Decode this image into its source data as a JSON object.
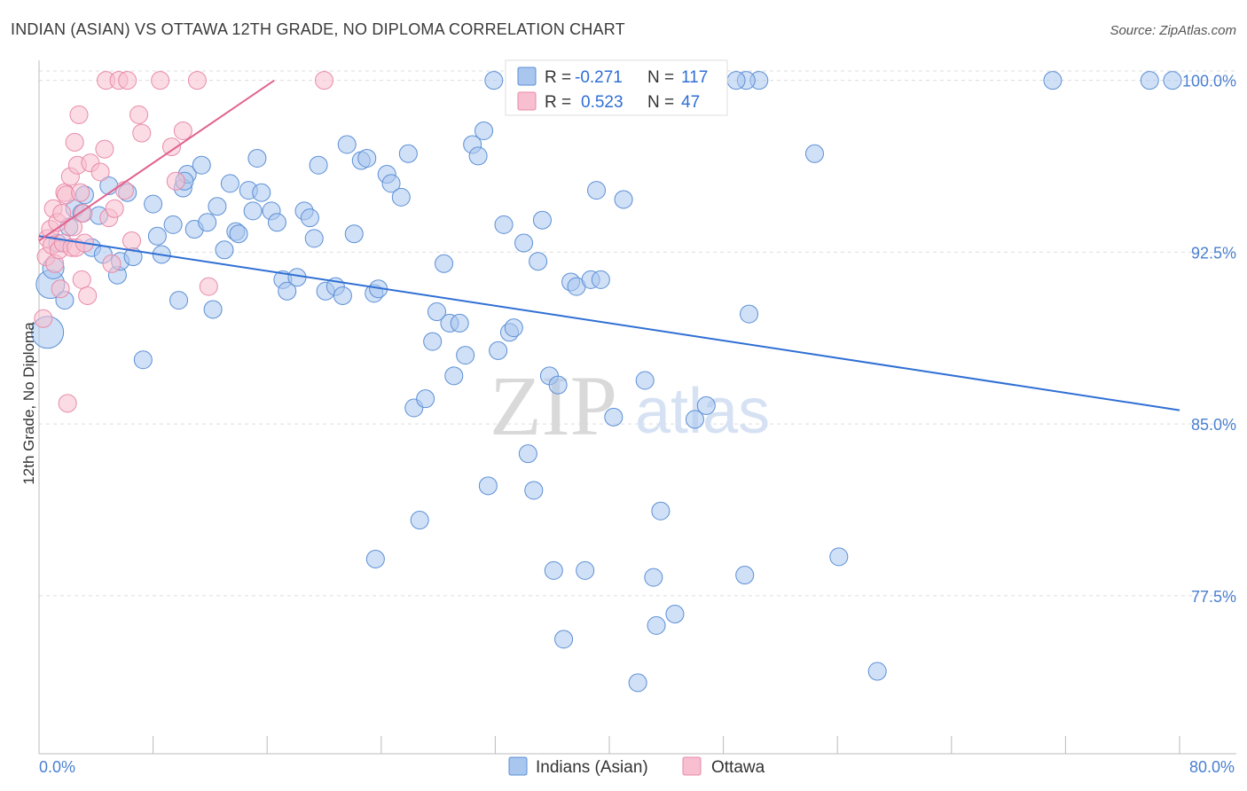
{
  "header": {
    "title": "INDIAN (ASIAN) VS OTTAWA 12TH GRADE, NO DIPLOMA CORRELATION CHART",
    "source": "Source: ZipAtlas.com"
  },
  "watermark": {
    "zip": "ZIP",
    "atlas": "atlas"
  },
  "colors": {
    "blue_fill": "#a9c6ee",
    "blue_stroke": "#5b8fd6",
    "blue_line": "#2f6fd4",
    "pink_fill": "#f7bfd0",
    "pink_stroke": "#e88aa8",
    "pink_line": "#e0638f",
    "grid": "#dddddd",
    "axis": "#bbbbbb"
  },
  "legend": {
    "rows": [
      {
        "r_label": "R =",
        "r_value": "-0.271",
        "n_label": "N =",
        "n_value": "117"
      },
      {
        "r_label": "R =",
        "r_value": "0.523",
        "n_label": "N =",
        "n_value": "47"
      }
    ]
  },
  "bottom_legend": {
    "series1": "Indians (Asian)",
    "series2": "Ottawa"
  },
  "chart_data": {
    "type": "scatter",
    "title": "INDIAN (ASIAN) VS OTTAWA 12TH GRADE, NO DIPLOMA CORRELATION CHART",
    "xlabel": "",
    "ylabel": "12th Grade, No Diploma",
    "xlim": [
      0,
      80
    ],
    "ylim": [
      70.6,
      100.8
    ],
    "x_tick_labels": [
      "0.0%",
      "80.0%"
    ],
    "y_ticks": [
      100.0,
      92.5,
      85.0,
      77.5
    ],
    "y_tick_labels": [
      "100.0%",
      "92.5%",
      "85.0%",
      "77.5%"
    ],
    "grid": true,
    "series": [
      {
        "name": "Indians (Asian)",
        "r": -0.271,
        "n": 117,
        "trend": {
          "x1": 0.0,
          "y1": 93.2,
          "x2": 80.0,
          "y2": 85.6
        },
        "points": [
          [
            0.6,
            89.0,
            18
          ],
          [
            0.8,
            91.1,
            16
          ],
          [
            1.0,
            91.8,
            12
          ],
          [
            1.3,
            92.9,
            10
          ],
          [
            1.8,
            90.4,
            10
          ],
          [
            2.1,
            93.6,
            10
          ],
          [
            2.5,
            94.4,
            10
          ],
          [
            3.0,
            94.2,
            10
          ],
          [
            3.2,
            95.0,
            10
          ],
          [
            3.7,
            92.7,
            10
          ],
          [
            4.2,
            94.1,
            10
          ],
          [
            4.5,
            92.4,
            10
          ],
          [
            4.9,
            95.4,
            10
          ],
          [
            5.5,
            91.5,
            10
          ],
          [
            5.7,
            92.1,
            10
          ],
          [
            6.2,
            95.1,
            10
          ],
          [
            6.6,
            92.3,
            10
          ],
          [
            7.3,
            87.8,
            10
          ],
          [
            8.0,
            94.6,
            10
          ],
          [
            8.3,
            93.2,
            10
          ],
          [
            8.6,
            92.4,
            10
          ],
          [
            9.4,
            93.7,
            10
          ],
          [
            9.8,
            90.4,
            10
          ],
          [
            10.1,
            95.3,
            10
          ],
          [
            10.4,
            95.9,
            10
          ],
          [
            10.9,
            93.5,
            10
          ],
          [
            11.4,
            96.3,
            10
          ],
          [
            11.8,
            93.8,
            10
          ],
          [
            12.2,
            90.0,
            10
          ],
          [
            12.5,
            94.5,
            10
          ],
          [
            13.0,
            92.6,
            10
          ],
          [
            13.4,
            95.5,
            10
          ],
          [
            13.8,
            93.4,
            10
          ],
          [
            14.0,
            93.3,
            10
          ],
          [
            14.7,
            95.2,
            10
          ],
          [
            15.0,
            94.3,
            10
          ],
          [
            15.3,
            96.6,
            10
          ],
          [
            15.6,
            95.1,
            10
          ],
          [
            16.3,
            94.3,
            10
          ],
          [
            16.7,
            93.8,
            10
          ],
          [
            17.1,
            91.3,
            10
          ],
          [
            17.4,
            90.8,
            10
          ],
          [
            18.1,
            91.4,
            10
          ],
          [
            18.6,
            94.3,
            10
          ],
          [
            19.0,
            94.0,
            10
          ],
          [
            19.3,
            93.1,
            10
          ],
          [
            19.6,
            96.3,
            10
          ],
          [
            20.1,
            90.8,
            10
          ],
          [
            20.8,
            91.0,
            10
          ],
          [
            21.3,
            90.6,
            10
          ],
          [
            21.6,
            97.2,
            10
          ],
          [
            22.1,
            93.3,
            10
          ],
          [
            22.6,
            96.5,
            10
          ],
          [
            23.0,
            96.6,
            10
          ],
          [
            23.5,
            90.7,
            10
          ],
          [
            23.8,
            90.9,
            10
          ],
          [
            24.4,
            95.9,
            10
          ],
          [
            24.7,
            95.5,
            10
          ],
          [
            25.4,
            94.9,
            10
          ],
          [
            25.9,
            96.8,
            10
          ],
          [
            26.3,
            85.7,
            10
          ],
          [
            26.7,
            80.8,
            10
          ],
          [
            27.1,
            86.1,
            10
          ],
          [
            27.6,
            88.6,
            10
          ],
          [
            27.9,
            89.9,
            10
          ],
          [
            28.4,
            92.0,
            10
          ],
          [
            28.8,
            89.4,
            10
          ],
          [
            29.1,
            87.1,
            10
          ],
          [
            29.5,
            89.4,
            10
          ],
          [
            29.9,
            88.0,
            10
          ],
          [
            30.4,
            97.2,
            10
          ],
          [
            30.8,
            96.7,
            10
          ],
          [
            31.2,
            97.8,
            10
          ],
          [
            31.5,
            82.3,
            10
          ],
          [
            31.9,
            100.0,
            10
          ],
          [
            32.2,
            88.2,
            10
          ],
          [
            32.6,
            93.7,
            10
          ],
          [
            33.0,
            89.0,
            10
          ],
          [
            33.3,
            89.2,
            10
          ],
          [
            34.0,
            92.9,
            10
          ],
          [
            34.3,
            83.7,
            10
          ],
          [
            34.7,
            82.1,
            10
          ],
          [
            35.0,
            92.1,
            10
          ],
          [
            35.3,
            93.9,
            10
          ],
          [
            35.8,
            87.1,
            10
          ],
          [
            36.1,
            78.6,
            10
          ],
          [
            36.4,
            86.7,
            10
          ],
          [
            36.8,
            75.6,
            10
          ],
          [
            37.3,
            91.2,
            10
          ],
          [
            37.7,
            91.0,
            10
          ],
          [
            38.3,
            78.6,
            10
          ],
          [
            38.7,
            91.3,
            10
          ],
          [
            39.1,
            95.2,
            10
          ],
          [
            39.4,
            91.3,
            10
          ],
          [
            40.3,
            85.3,
            10
          ],
          [
            41.0,
            94.8,
            10
          ],
          [
            42.0,
            73.7,
            10
          ],
          [
            42.5,
            86.9,
            10
          ],
          [
            43.1,
            78.3,
            10
          ],
          [
            43.3,
            76.2,
            10
          ],
          [
            43.6,
            81.2,
            10
          ],
          [
            44.6,
            76.7,
            10
          ],
          [
            46.0,
            85.2,
            10
          ],
          [
            46.8,
            85.8,
            10
          ],
          [
            49.5,
            78.4,
            10
          ],
          [
            49.8,
            89.8,
            10
          ],
          [
            50.5,
            100.0,
            10
          ],
          [
            54.4,
            96.8,
            10
          ],
          [
            56.1,
            79.2,
            10
          ],
          [
            58.8,
            74.2,
            10
          ],
          [
            71.1,
            100.0,
            10
          ],
          [
            77.9,
            100.0,
            10
          ],
          [
            79.5,
            100.0,
            10
          ],
          [
            49.6,
            100.0,
            10
          ],
          [
            48.9,
            100.0,
            10
          ],
          [
            23.6,
            79.1,
            10
          ],
          [
            10.2,
            95.6,
            10
          ]
        ]
      },
      {
        "name": "Ottawa",
        "r": 0.523,
        "n": 47,
        "trend": {
          "x1": 0.0,
          "y1": 93.0,
          "x2": 16.5,
          "y2": 100.0
        },
        "points": [
          [
            0.3,
            89.6,
            10
          ],
          [
            0.5,
            92.3,
            10
          ],
          [
            0.6,
            93.1,
            10
          ],
          [
            0.8,
            93.5,
            10
          ],
          [
            0.9,
            92.8,
            10
          ],
          [
            1.0,
            94.4,
            10
          ],
          [
            1.1,
            92.0,
            10
          ],
          [
            1.3,
            93.8,
            10
          ],
          [
            1.4,
            92.6,
            10
          ],
          [
            1.5,
            90.9,
            10
          ],
          [
            1.6,
            94.2,
            10
          ],
          [
            1.7,
            92.9,
            10
          ],
          [
            1.8,
            95.1,
            10
          ],
          [
            1.9,
            95.0,
            10
          ],
          [
            2.0,
            85.9,
            10
          ],
          [
            2.2,
            95.8,
            10
          ],
          [
            2.3,
            92.7,
            10
          ],
          [
            2.4,
            93.6,
            10
          ],
          [
            2.5,
            97.3,
            10
          ],
          [
            2.6,
            92.7,
            10
          ],
          [
            2.7,
            96.3,
            10
          ],
          [
            2.8,
            98.5,
            10
          ],
          [
            2.9,
            95.1,
            10
          ],
          [
            3.0,
            91.3,
            10
          ],
          [
            3.1,
            94.2,
            10
          ],
          [
            3.2,
            92.9,
            10
          ],
          [
            3.4,
            90.6,
            10
          ],
          [
            3.6,
            96.4,
            10
          ],
          [
            4.3,
            96.0,
            10
          ],
          [
            4.6,
            97.0,
            10
          ],
          [
            4.7,
            100.0,
            10
          ],
          [
            4.9,
            94.0,
            10
          ],
          [
            5.1,
            92.0,
            10
          ],
          [
            5.3,
            94.4,
            10
          ],
          [
            5.6,
            100.0,
            10
          ],
          [
            6.0,
            95.2,
            10
          ],
          [
            6.2,
            100.0,
            10
          ],
          [
            6.5,
            93.0,
            10
          ],
          [
            7.0,
            98.5,
            10
          ],
          [
            7.2,
            97.7,
            10
          ],
          [
            8.5,
            100.0,
            10
          ],
          [
            9.3,
            97.1,
            10
          ],
          [
            9.6,
            95.6,
            10
          ],
          [
            10.1,
            97.8,
            10
          ],
          [
            11.1,
            100.0,
            10
          ],
          [
            11.9,
            91.0,
            10
          ],
          [
            20.0,
            100.0,
            10
          ]
        ]
      }
    ]
  }
}
